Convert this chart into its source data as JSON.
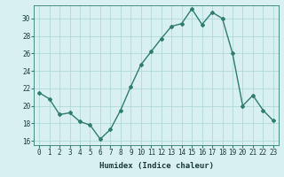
{
  "x": [
    0,
    1,
    2,
    3,
    4,
    5,
    6,
    7,
    8,
    9,
    10,
    11,
    12,
    13,
    14,
    15,
    16,
    17,
    18,
    19,
    20,
    21,
    22,
    23
  ],
  "y": [
    21.5,
    20.8,
    19.0,
    19.2,
    18.2,
    17.8,
    16.2,
    17.3,
    19.5,
    22.2,
    24.7,
    26.2,
    27.7,
    29.1,
    29.4,
    31.1,
    29.3,
    30.7,
    30.0,
    26.0,
    20.0,
    21.2,
    19.5,
    18.3
  ],
  "line_color": "#2e7d6e",
  "marker": "D",
  "marker_size": 2.0,
  "bg_color": "#d8f0f0",
  "grid_color": "#aad4d4",
  "xlabel": "Humidex (Indice chaleur)",
  "xlim": [
    -0.5,
    23.5
  ],
  "ylim": [
    15.5,
    31.5
  ],
  "xtick_labels": [
    "0",
    "1",
    "2",
    "3",
    "4",
    "5",
    "6",
    "7",
    "8",
    "9",
    "10",
    "11",
    "12",
    "13",
    "14",
    "15",
    "16",
    "17",
    "18",
    "19",
    "20",
    "21",
    "22",
    "23"
  ],
  "ytick_values": [
    16,
    18,
    20,
    22,
    24,
    26,
    28,
    30
  ],
  "xlabel_fontsize": 6.5,
  "tick_fontsize": 5.5,
  "line_width": 1.0
}
